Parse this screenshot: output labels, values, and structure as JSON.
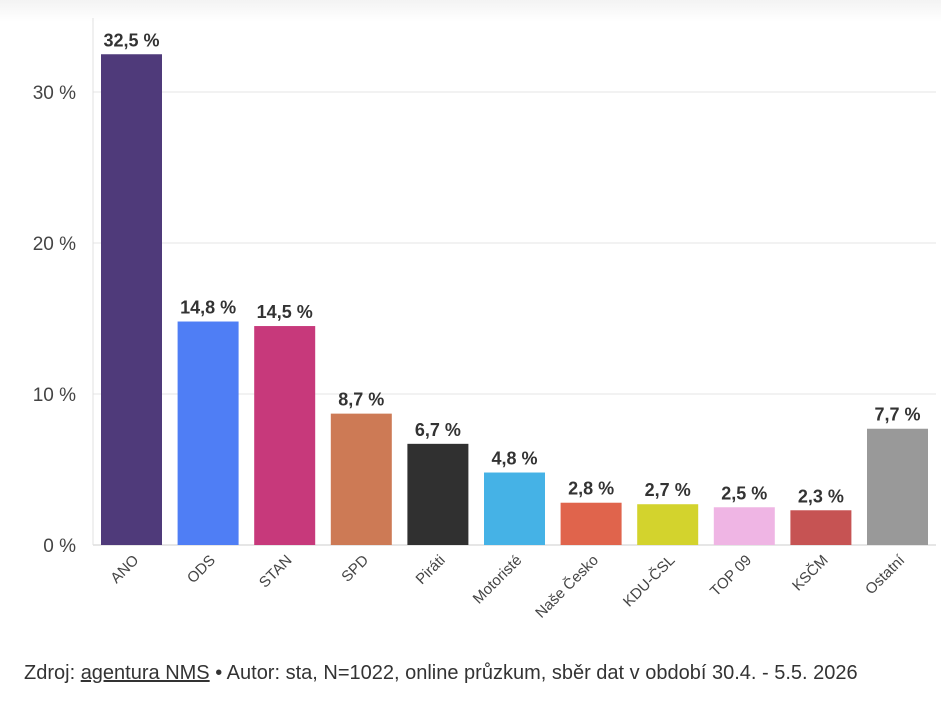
{
  "chart_data": {
    "type": "bar",
    "categories": [
      "ANO",
      "ODS",
      "STAN",
      "SPD",
      "Piráti",
      "Motoristé",
      "Naše Česko",
      "KDU-ČSL",
      "TOP 09",
      "KSČM",
      "Ostatní"
    ],
    "values": [
      32.5,
      14.8,
      14.5,
      8.7,
      6.7,
      4.8,
      2.8,
      2.7,
      2.5,
      2.3,
      7.7
    ],
    "value_labels": [
      "32,5 %",
      "14,8 %",
      "14,5 %",
      "8,7 %",
      "6,7 %",
      "4,8 %",
      "2,8 %",
      "2,7 %",
      "2,5 %",
      "2,3 %",
      "7,7 %"
    ],
    "colors": [
      "#4f3a7a",
      "#4f7ef5",
      "#c7397b",
      "#cd7a55",
      "#303030",
      "#45b2e6",
      "#e0644c",
      "#d3d32d",
      "#efb5e4",
      "#c65353",
      "#999999"
    ],
    "yticks": [
      0,
      10,
      20,
      30
    ],
    "ytick_labels": [
      "0 %",
      "10 %",
      "20 %",
      "30 %"
    ],
    "ylim": [
      0,
      35
    ],
    "grid": true,
    "title": "",
    "xlabel": "",
    "ylabel": ""
  },
  "footer": {
    "prefix": "Zdroj: ",
    "source_link": "agentura NMS",
    "rest": " • Autor: sta, N=1022, online průzkum, sběr dat v období 30.4. - 5.5. 2026"
  }
}
